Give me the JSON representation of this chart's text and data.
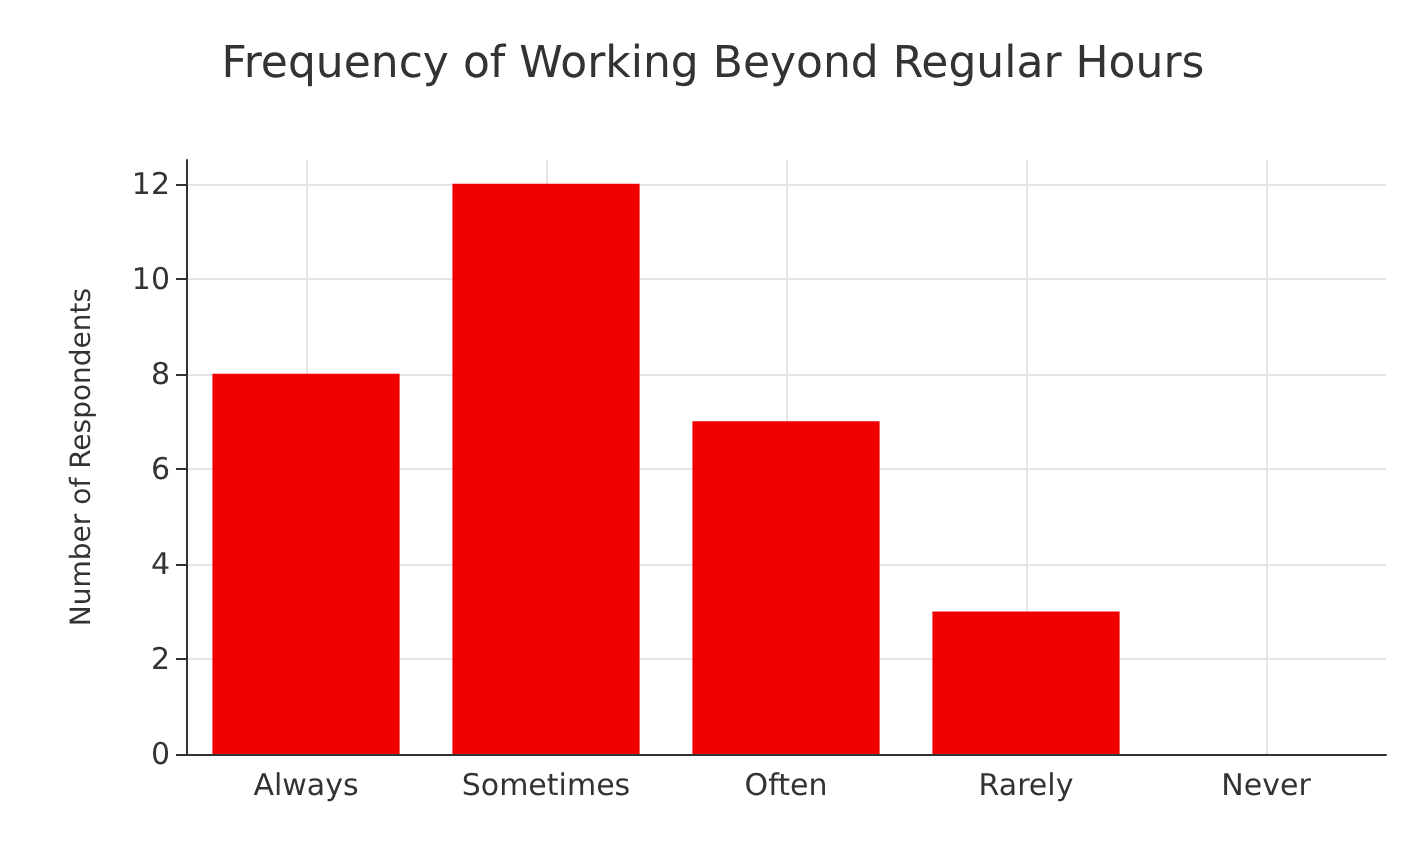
{
  "chart_data": {
    "type": "bar",
    "title": "Frequency of Working Beyond Regular Hours",
    "ylabel": "Number of Respondents",
    "categories": [
      "Always",
      "Sometimes",
      "Often",
      "Rarely",
      "Never"
    ],
    "values": [
      8,
      12,
      7,
      3,
      0
    ],
    "color": "#f20000",
    "ylim": [
      0,
      12.5
    ],
    "yticks": [
      0,
      2,
      4,
      6,
      8,
      10,
      12
    ],
    "grid": true
  }
}
